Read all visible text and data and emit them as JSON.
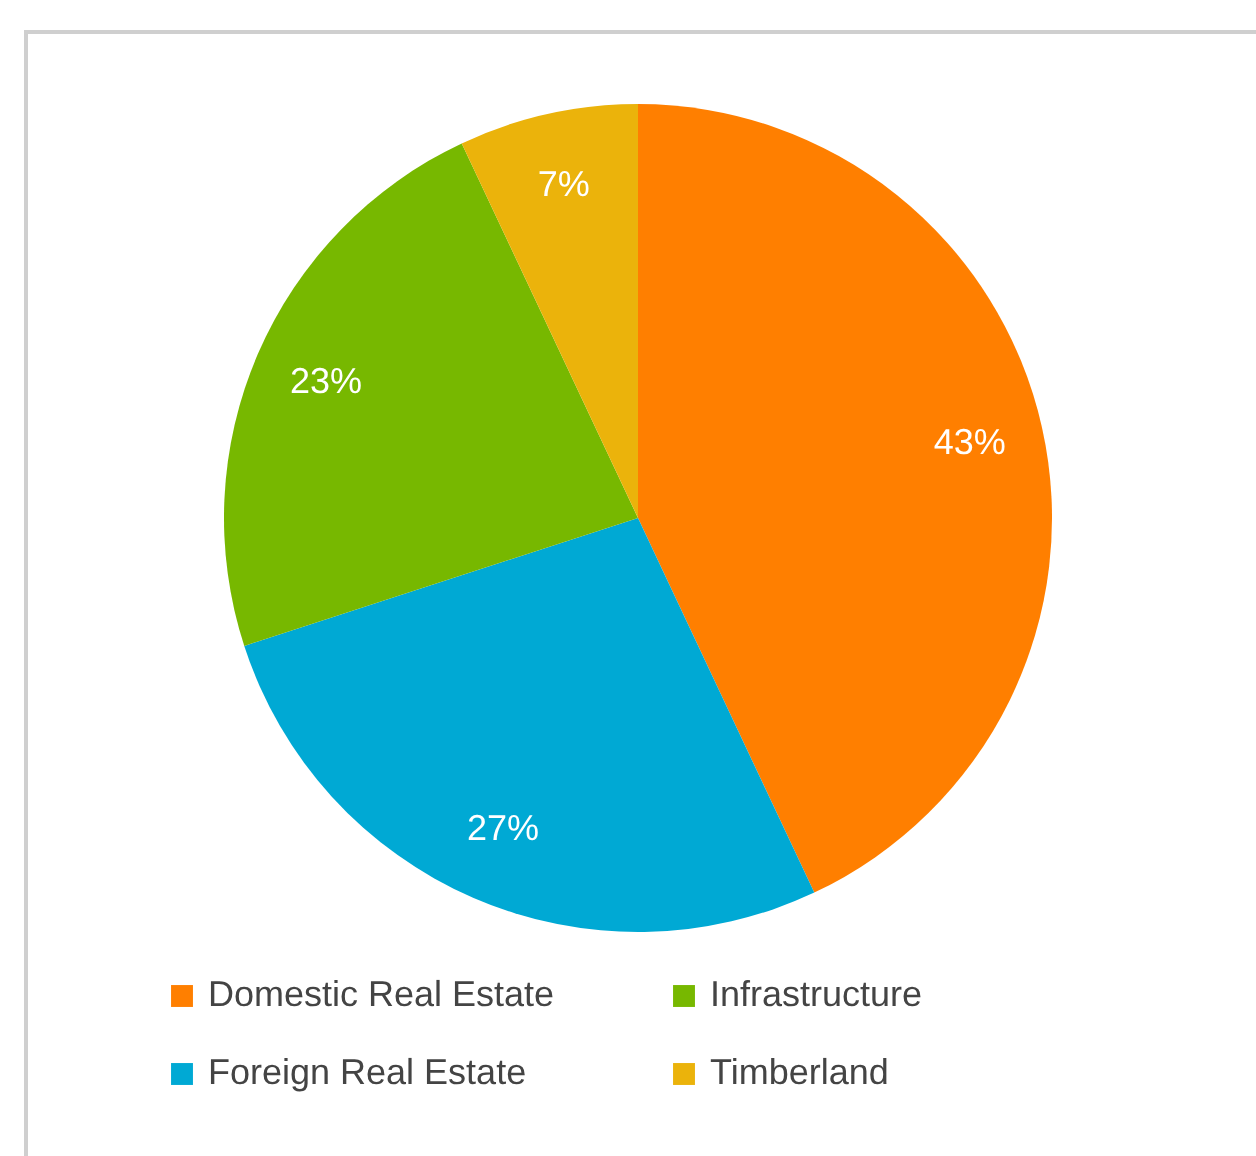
{
  "chart_data": {
    "type": "pie",
    "categories": [
      "Domestic Real Estate",
      "Foreign Real Estate",
      "Infrastructure",
      "Timberland"
    ],
    "values": [
      43,
      27,
      23,
      7
    ],
    "colors": [
      "#ff7f00",
      "#00a9d4",
      "#77b800",
      "#ebb30b"
    ],
    "value_labels": [
      "43%",
      "27%",
      "23%",
      "7%"
    ],
    "legend": "bottom"
  }
}
